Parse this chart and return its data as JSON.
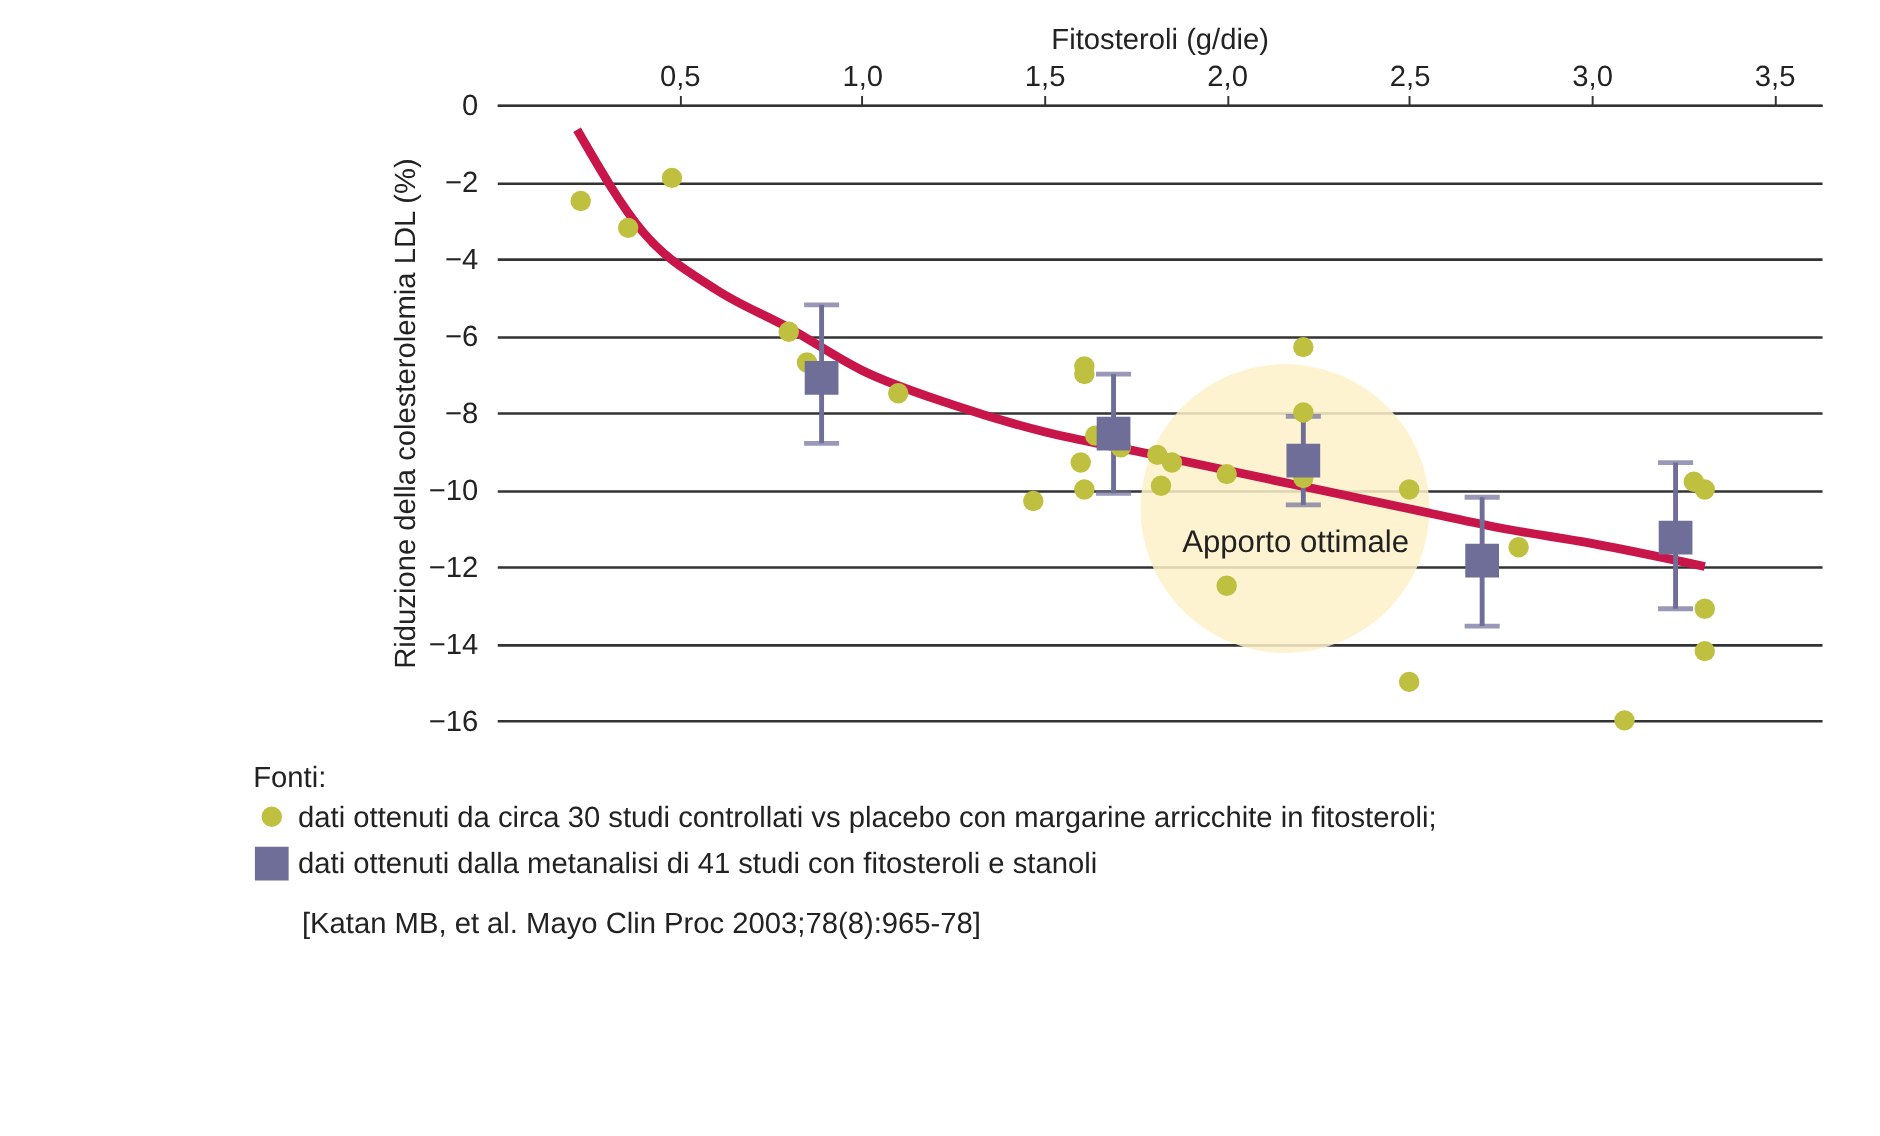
{
  "chart_data": {
    "type": "scatter",
    "xlabel": "Fitosteroli (g/die)",
    "ylabel": "Riduzione della colesterolemia LDL (%)",
    "legend_title": "Fonti:",
    "xlim": [
      0,
      3.63
    ],
    "ylim": [
      -16,
      0
    ],
    "xticks": [
      {
        "value": 0.5,
        "label": "0,5"
      },
      {
        "value": 1,
        "label": "1,0"
      },
      {
        "value": 1.5,
        "label": "1,5"
      },
      {
        "value": 2,
        "label": "2,0"
      },
      {
        "value": 2.5,
        "label": "2,5"
      },
      {
        "value": 3,
        "label": "3,0"
      },
      {
        "value": 3.5,
        "label": "3,5"
      }
    ],
    "yticks": [
      0,
      -2,
      -4,
      -6,
      -8,
      -10,
      -12,
      -14,
      -16
    ],
    "grid": "y",
    "legend": "bottom left",
    "series": [
      {
        "type": "line",
        "marker": "none",
        "color": "#c8164a",
        "x": [
          0.22,
          0.4,
          0.6,
          0.8,
          1.0,
          1.25,
          1.5,
          1.75,
          2.0,
          2.25,
          2.5,
          2.75,
          3.0,
          3.31
        ],
        "values": [
          -0.65,
          -3.3,
          -4.8,
          -5.8,
          -6.9,
          -7.8,
          -8.5,
          -9.0,
          -9.5,
          -10.0,
          -10.5,
          -11.0,
          -11.4,
          -12.0
        ]
      },
      {
        "marker": "circle",
        "name": "dati ottenuti da circa 30 studi controllati vs placebo con margarine arricchite in fitosteroli;",
        "color": "#bfc040",
        "x": [
          0.23,
          0.36,
          0.48,
          0.8,
          0.85,
          1.1,
          1.47,
          1.61,
          1.61,
          1.6,
          1.61,
          1.64,
          1.71,
          1.81,
          1.85,
          1.82,
          2.0,
          2.0,
          2.21,
          2.21,
          2.21,
          2.5,
          2.5,
          2.8,
          3.09,
          3.28,
          3.31,
          3.31,
          3.31
        ],
        "values": [
          -2.5,
          -3.2,
          -1.9,
          -5.9,
          -6.7,
          -7.5,
          -10.3,
          -6.8,
          -7.0,
          -9.3,
          -10.0,
          -8.6,
          -8.9,
          -9.1,
          -9.3,
          -9.9,
          -9.6,
          -12.5,
          -6.3,
          -8.0,
          -9.7,
          -10.0,
          -15.0,
          -11.5,
          -16.0,
          -9.8,
          -10.0,
          -13.1,
          -14.2
        ]
      },
      {
        "marker": "square",
        "name": "dati ottenuti dalla metanalisi di 41 studi con fitosteroli e stanoli",
        "color": "#6e6e98",
        "x": [
          0.89,
          1.69,
          2.21,
          2.7,
          3.23
        ],
        "values": [
          -7.1,
          -8.55,
          -9.25,
          -11.85,
          -11.25
        ],
        "errors": [
          [
            -8.8,
            -5.2
          ],
          [
            -10.1,
            -7.0
          ],
          [
            -10.4,
            -8.1
          ],
          [
            -13.55,
            -10.2
          ],
          [
            -13.1,
            -9.3
          ]
        ]
      }
    ],
    "annotations": [
      "Apporto ottimale",
      "[Katan MB, et al. Mayo Clin Proc 2003;78(8):965-78]"
    ]
  }
}
